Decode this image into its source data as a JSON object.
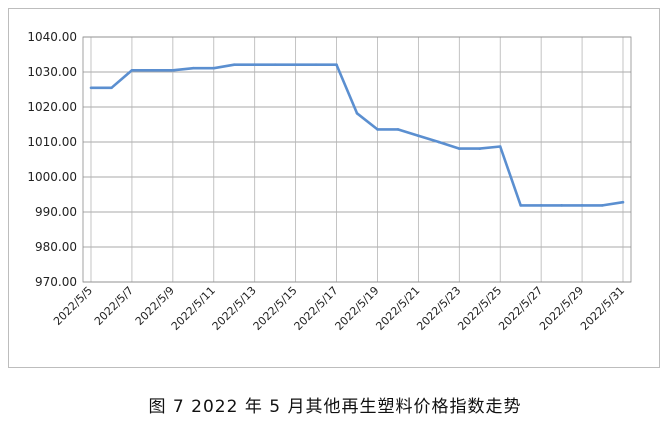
{
  "caption": "图 7  2022 年 5 月其他再生塑料价格指数走势",
  "chart_data": {
    "type": "line",
    "title": "",
    "xlabel": "",
    "ylabel": "",
    "ylim": [
      970,
      1040
    ],
    "yticks": [
      "970.00",
      "980.00",
      "990.00",
      "1000.00",
      "1010.00",
      "1020.00",
      "1030.00",
      "1040.00"
    ],
    "x": [
      "2022/5/5",
      "2022/5/6",
      "2022/5/7",
      "2022/5/8",
      "2022/5/9",
      "2022/5/10",
      "2022/5/11",
      "2022/5/12",
      "2022/5/13",
      "2022/5/14",
      "2022/5/15",
      "2022/5/16",
      "2022/5/17",
      "2022/5/18",
      "2022/5/19",
      "2022/5/20",
      "2022/5/21",
      "2022/5/22",
      "2022/5/23",
      "2022/5/24",
      "2022/5/25",
      "2022/5/26",
      "2022/5/27",
      "2022/5/28",
      "2022/5/29",
      "2022/5/30",
      "2022/5/31"
    ],
    "xtick_labels": [
      "2022/5/5",
      "2022/5/7",
      "2022/5/9",
      "2022/5/11",
      "2022/5/13",
      "2022/5/15",
      "2022/5/17",
      "2022/5/19",
      "2022/5/21",
      "2022/5/23",
      "2022/5/25",
      "2022/5/27",
      "2022/5/29",
      "2022/5/31"
    ],
    "series": [
      {
        "color": "#5b8fd0",
        "values": [
          1025.5,
          1025.5,
          1030.5,
          1030.5,
          1030.5,
          1031.1,
          1031.1,
          1032.1,
          1032.1,
          1032.1,
          1032.1,
          1032.1,
          1032.1,
          1018.2,
          1013.6,
          1013.6,
          1011.8,
          1010.0,
          1008.1,
          1008.1,
          1008.7,
          991.9,
          991.9,
          991.9,
          991.9,
          991.9,
          992.8
        ]
      }
    ],
    "grid": true,
    "legend": "none"
  }
}
